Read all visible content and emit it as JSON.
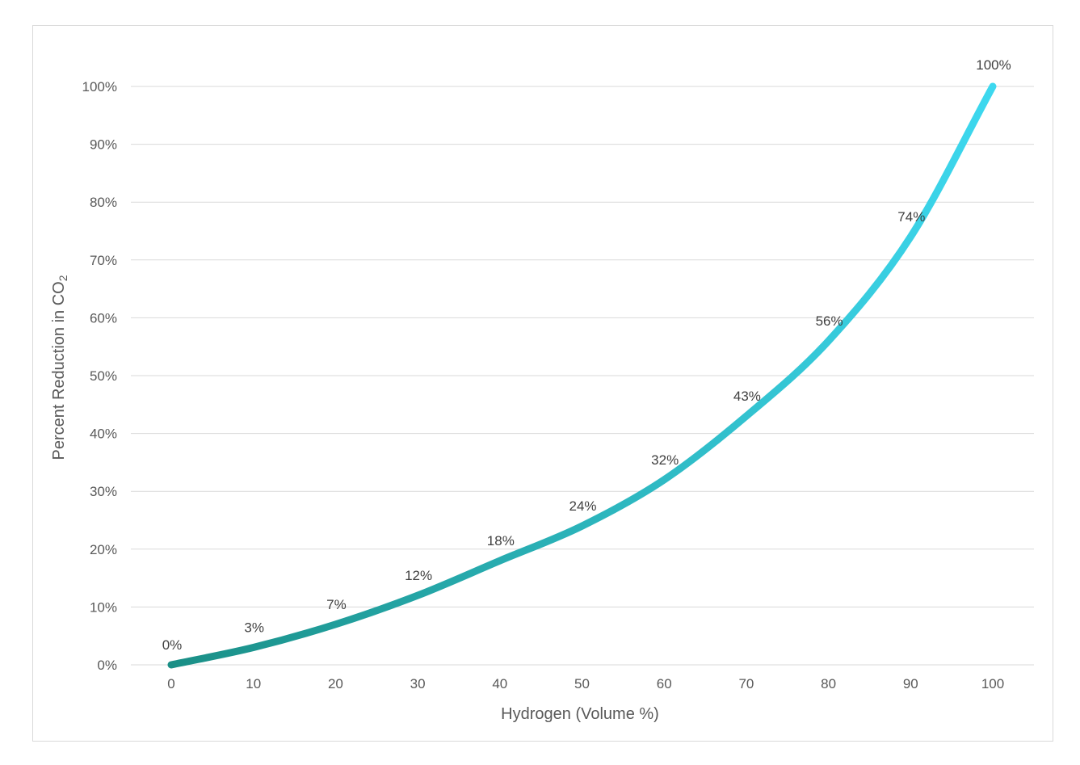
{
  "chart_data": {
    "type": "line",
    "title": "",
    "xlabel": "Hydrogen (Volume %)",
    "ylabel_main": "Percent Reduction in CO",
    "ylabel_sub": "2",
    "x": [
      0,
      10,
      20,
      30,
      40,
      50,
      60,
      70,
      80,
      90,
      100
    ],
    "series": [
      {
        "values": [
          0,
          3,
          7,
          12,
          18,
          24,
          32,
          43,
          56,
          74,
          100
        ],
        "labels": [
          "0%",
          "3%",
          "7%",
          "12%",
          "18%",
          "24%",
          "32%",
          "43%",
          "56%",
          "74%",
          "100%"
        ]
      }
    ],
    "x_ticks": [
      "0",
      "10",
      "20",
      "30",
      "40",
      "50",
      "60",
      "70",
      "80",
      "90",
      "100"
    ],
    "y_ticks": [
      "0%",
      "10%",
      "20%",
      "30%",
      "40%",
      "50%",
      "60%",
      "70%",
      "80%",
      "90%",
      "100%"
    ],
    "xlim": [
      0,
      100
    ],
    "ylim": [
      0,
      100
    ],
    "grid": "horizontal",
    "legend": "none",
    "colors": {
      "line_start": "#1a8f86",
      "line_end": "#3dd8ef",
      "grid": "#d9d9d9",
      "text": "#595959"
    }
  }
}
